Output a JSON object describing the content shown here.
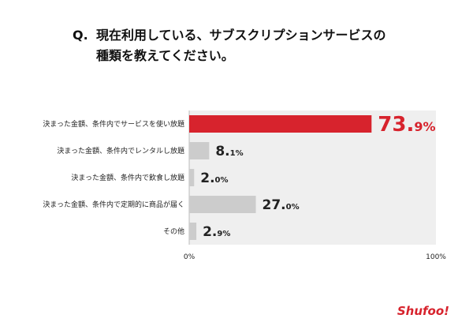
{
  "title": {
    "prefix": "Q.",
    "line1": "現在利用している、サブスクリプションサービスの",
    "line2": "種類を教えてください。"
  },
  "chart_data": {
    "type": "bar",
    "orientation": "horizontal",
    "categories": [
      "決まった金額、条件内でサービスを使い放題",
      "決まった金額、条件内でレンタルし放題",
      "決まった金額、条件内で飲食し放題",
      "決まった金額、条件内で定期的に商品が届く",
      "その他"
    ],
    "values": [
      73.9,
      8.1,
      2.0,
      27.0,
      2.9
    ],
    "value_labels": [
      {
        "int": "73.",
        "dec": "9%"
      },
      {
        "int": "8.",
        "dec": "1%"
      },
      {
        "int": "2.",
        "dec": "0%"
      },
      {
        "int": "27.",
        "dec": "0%"
      },
      {
        "int": "2.",
        "dec": "9%"
      }
    ],
    "xlim": [
      0,
      100
    ],
    "x_tick_labels": [
      "0%",
      "100%"
    ],
    "grid": false,
    "colors": {
      "highlight": "#d7232d",
      "bar": "#cccccc",
      "track": "#efefef"
    },
    "highlight_index": 0
  },
  "brand": {
    "logo_text": "Shufoo!",
    "color": "#d7232d"
  }
}
